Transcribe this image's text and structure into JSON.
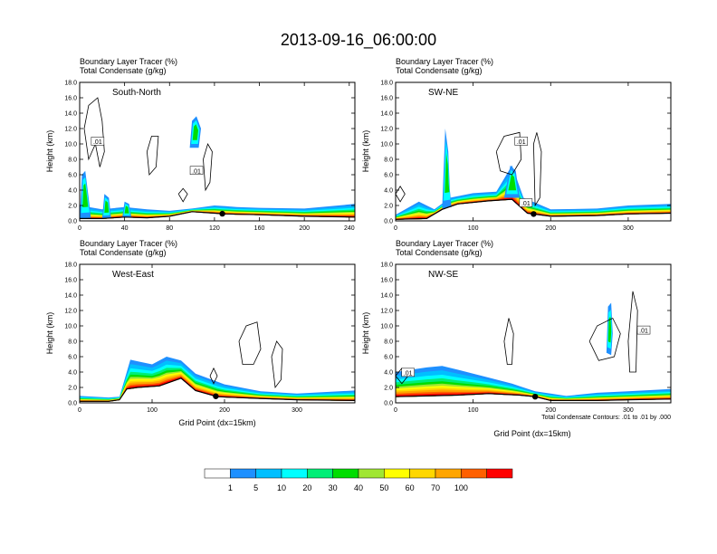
{
  "title": "2013-09-16_06:00:00",
  "header_line1": "Boundary Layer Tracer   (%)",
  "header_line2": "Total Condensate   (g/kg)",
  "ylabel": "Height (km)",
  "xlabel": "Grid Point (dx=15km)",
  "contour_note": "Total Condensate Contours: .01 to .01 by .000",
  "contour_label": ".01",
  "chart_data": {
    "type": "heatmap",
    "colorbar": {
      "colors": [
        "#ffffff",
        "#1e90ff",
        "#00bfff",
        "#00ffff",
        "#00ee76",
        "#00dd00",
        "#a0e632",
        "#ffff00",
        "#ffd700",
        "#ffa500",
        "#ff6000",
        "#ff0000"
      ],
      "labels": [
        "1",
        "5",
        "10",
        "20",
        "30",
        "40",
        "50",
        "60",
        "70",
        "100"
      ]
    },
    "panels": [
      {
        "name": "South-North",
        "xlim": [
          0,
          245
        ],
        "ylim": [
          0,
          18
        ],
        "xticks": [
          0,
          40,
          80,
          120,
          160,
          200,
          240
        ],
        "xtick_labels": [
          "0",
          "40",
          "80",
          "120",
          "160",
          "200",
          "240"
        ],
        "yticks": [
          0,
          2,
          4,
          6,
          8,
          10,
          12,
          14,
          16,
          18
        ],
        "ytick_labels": [
          "0.0",
          "2.0",
          "4.0",
          "6.0",
          "8.0",
          "10.0",
          "12.0",
          "14.0",
          "16.0",
          "18.0"
        ],
        "terrain": [
          [
            0,
            0.3
          ],
          [
            20,
            0.3
          ],
          [
            40,
            0.5
          ],
          [
            60,
            0.4
          ],
          [
            80,
            0.6
          ],
          [
            100,
            1.2
          ],
          [
            120,
            1.0
          ],
          [
            130,
            0.9
          ],
          [
            160,
            0.8
          ],
          [
            200,
            0.6
          ],
          [
            245,
            0.5
          ]
        ],
        "tracer_top": [
          [
            0,
            2.0
          ],
          [
            20,
            1.5
          ],
          [
            40,
            1.8
          ],
          [
            60,
            1.5
          ],
          [
            80,
            1.3
          ],
          [
            100,
            1.6
          ],
          [
            120,
            2.0
          ],
          [
            140,
            1.8
          ],
          [
            160,
            1.7
          ],
          [
            200,
            1.6
          ],
          [
            245,
            2.2
          ]
        ],
        "plumes": [
          [
            [
              0,
              0.3
            ],
            [
              2,
              6.0
            ],
            [
              5,
              6.5
            ],
            [
              8,
              3.0
            ],
            [
              10,
              0.4
            ]
          ],
          [
            [
              20,
              0.3
            ],
            [
              22,
              3.5
            ],
            [
              26,
              3.0
            ],
            [
              28,
              0.4
            ]
          ],
          [
            [
              38,
              0.5
            ],
            [
              40,
              2.5
            ],
            [
              44,
              2.2
            ],
            [
              46,
              0.5
            ]
          ],
          [
            [
              98,
              9.5
            ],
            [
              100,
              13.0
            ],
            [
              104,
              13.6
            ],
            [
              108,
              12.0
            ],
            [
              106,
              9.5
            ]
          ]
        ],
        "marker_x": 127,
        "contours": [
          [
            [
              4,
              12
            ],
            [
              8,
              15
            ],
            [
              16,
              16
            ],
            [
              20,
              13
            ],
            [
              22,
              9
            ],
            [
              18,
              7
            ],
            [
              14,
              10
            ],
            [
              8,
              8
            ],
            [
              4,
              12
            ]
          ],
          [
            [
              60,
              9
            ],
            [
              64,
              11
            ],
            [
              70,
              11
            ],
            [
              68,
              7
            ],
            [
              62,
              6
            ],
            [
              60,
              9
            ]
          ],
          [
            [
              110,
              8
            ],
            [
              114,
              10
            ],
            [
              118,
              9
            ],
            [
              116,
              5
            ],
            [
              112,
              4
            ],
            [
              110,
              8
            ]
          ],
          [
            [
              88,
              3.5
            ],
            [
              92,
              4.2
            ],
            [
              96,
              3.5
            ],
            [
              92,
              2.5
            ],
            [
              88,
              3.5
            ]
          ]
        ],
        "contour_labels": [
          [
            16,
            10.3
          ],
          [
            104,
            6.5
          ]
        ]
      },
      {
        "name": "SW-NE",
        "xlim": [
          0,
          355
        ],
        "ylim": [
          0,
          18
        ],
        "xticks": [
          0,
          100,
          200,
          300
        ],
        "xtick_labels": [
          "0",
          "100",
          "200",
          "300"
        ],
        "yticks": [
          0,
          2,
          4,
          6,
          8,
          10,
          12,
          14,
          16,
          18
        ],
        "ytick_labels": [
          "0.0",
          "2.0",
          "4.0",
          "6.0",
          "8.0",
          "10.0",
          "12.0",
          "14.0",
          "16.0",
          "18.0"
        ],
        "terrain": [
          [
            0,
            0.2
          ],
          [
            40,
            0.3
          ],
          [
            60,
            1.5
          ],
          [
            80,
            2.2
          ],
          [
            120,
            2.6
          ],
          [
            150,
            2.8
          ],
          [
            170,
            1.0
          ],
          [
            200,
            0.6
          ],
          [
            260,
            0.7
          ],
          [
            300,
            0.9
          ],
          [
            355,
            1.0
          ]
        ],
        "tracer_top": [
          [
            0,
            0.8
          ],
          [
            30,
            2.5
          ],
          [
            50,
            1.5
          ],
          [
            70,
            3.0
          ],
          [
            100,
            3.6
          ],
          [
            130,
            3.8
          ],
          [
            150,
            7.2
          ],
          [
            165,
            3.0
          ],
          [
            200,
            1.5
          ],
          [
            260,
            1.6
          ],
          [
            300,
            2.0
          ],
          [
            355,
            2.2
          ]
        ],
        "plumes": [
          [
            [
              60,
              1.6
            ],
            [
              64,
              12.0
            ],
            [
              68,
              9.0
            ],
            [
              70,
              4.0
            ],
            [
              72,
              1.8
            ]
          ],
          [
            [
              140,
              3.0
            ],
            [
              148,
              7.2
            ],
            [
              155,
              6.5
            ],
            [
              160,
              3.0
            ]
          ]
        ],
        "marker_x": 178,
        "contours": [
          [
            [
              130,
              9
            ],
            [
              140,
              11
            ],
            [
              160,
              11.5
            ],
            [
              162,
              8
            ],
            [
              150,
              6
            ],
            [
              135,
              6.5
            ],
            [
              130,
              9
            ]
          ],
          [
            [
              178,
              10
            ],
            [
              182,
              11.5
            ],
            [
              188,
              9
            ],
            [
              186,
              3
            ],
            [
              180,
              2
            ],
            [
              178,
              10
            ]
          ],
          [
            [
              0,
              3.5
            ],
            [
              6,
              4.5
            ],
            [
              12,
              3.5
            ],
            [
              6,
              2.5
            ],
            [
              0,
              3.5
            ]
          ]
        ],
        "contour_labels": [
          [
            162,
            10.3
          ],
          [
            168,
            2.3
          ]
        ]
      },
      {
        "name": "West-East",
        "xlim": [
          0,
          380
        ],
        "ylim": [
          0,
          18
        ],
        "xticks": [
          0,
          100,
          200,
          300
        ],
        "xtick_labels": [
          "0",
          "100",
          "200",
          "300"
        ],
        "yticks": [
          0,
          2,
          4,
          6,
          8,
          10,
          12,
          14,
          16,
          18
        ],
        "ytick_labels": [
          "0.0",
          "2.0",
          "4.0",
          "6.0",
          "8.0",
          "10.0",
          "12.0",
          "14.0",
          "16.0",
          "18.0"
        ],
        "terrain": [
          [
            0,
            0.2
          ],
          [
            40,
            0.2
          ],
          [
            55,
            0.4
          ],
          [
            65,
            1.8
          ],
          [
            80,
            2.0
          ],
          [
            110,
            2.2
          ],
          [
            140,
            3.2
          ],
          [
            160,
            1.6
          ],
          [
            190,
            0.8
          ],
          [
            240,
            0.6
          ],
          [
            300,
            0.4
          ],
          [
            380,
            0.3
          ]
        ],
        "tracer_top": [
          [
            0,
            0.9
          ],
          [
            40,
            0.7
          ],
          [
            55,
            0.8
          ],
          [
            70,
            5.6
          ],
          [
            100,
            5.0
          ],
          [
            120,
            6.0
          ],
          [
            140,
            5.5
          ],
          [
            160,
            3.8
          ],
          [
            200,
            2.4
          ],
          [
            250,
            1.5
          ],
          [
            300,
            1.2
          ],
          [
            380,
            1.6
          ]
        ],
        "plumes": [],
        "marker_x": 188,
        "contours": [
          [
            [
              220,
              8
            ],
            [
              230,
              10
            ],
            [
              245,
              10.5
            ],
            [
              250,
              7
            ],
            [
              240,
              5
            ],
            [
              225,
              5
            ],
            [
              220,
              8
            ]
          ],
          [
            [
              265,
              6
            ],
            [
              272,
              8
            ],
            [
              280,
              7
            ],
            [
              278,
              3
            ],
            [
              270,
              2
            ],
            [
              265,
              6
            ]
          ],
          [
            [
              180,
              3.5
            ],
            [
              185,
              4.5
            ],
            [
              190,
              3.5
            ],
            [
              185,
              2.5
            ],
            [
              180,
              3.5
            ]
          ]
        ],
        "contour_labels": []
      },
      {
        "name": "NW-SE",
        "xlim": [
          0,
          355
        ],
        "ylim": [
          0,
          18
        ],
        "xticks": [
          0,
          100,
          200,
          300
        ],
        "xtick_labels": [
          "0",
          "100",
          "200",
          "300"
        ],
        "yticks": [
          0,
          2,
          4,
          6,
          8,
          10,
          12,
          14,
          16,
          18
        ],
        "ytick_labels": [
          "0.0",
          "2.0",
          "4.0",
          "6.0",
          "8.0",
          "10.0",
          "12.0",
          "14.0",
          "16.0",
          "18.0"
        ],
        "terrain": [
          [
            0,
            0.8
          ],
          [
            40,
            0.9
          ],
          [
            80,
            1.0
          ],
          [
            120,
            1.2
          ],
          [
            160,
            1.0
          ],
          [
            180,
            0.8
          ],
          [
            200,
            0.3
          ],
          [
            260,
            0.3
          ],
          [
            300,
            0.4
          ],
          [
            355,
            0.5
          ]
        ],
        "tracer_top": [
          [
            0,
            4.0
          ],
          [
            40,
            4.6
          ],
          [
            60,
            4.8
          ],
          [
            100,
            3.8
          ],
          [
            150,
            2.5
          ],
          [
            180,
            1.5
          ],
          [
            220,
            0.9
          ],
          [
            260,
            1.3
          ],
          [
            300,
            1.5
          ],
          [
            355,
            1.8
          ]
        ],
        "plumes": [
          [
            [
              272,
              6.5
            ],
            [
              274,
              12.5
            ],
            [
              278,
              13.0
            ],
            [
              280,
              9.0
            ],
            [
              278,
              6.2
            ]
          ]
        ],
        "marker_x": 180,
        "contours": [
          [
            [
              250,
              8
            ],
            [
              260,
              10
            ],
            [
              280,
              11
            ],
            [
              290,
              9
            ],
            [
              282,
              6
            ],
            [
              262,
              5.5
            ],
            [
              250,
              8
            ]
          ],
          [
            [
              140,
              8
            ],
            [
              146,
              11
            ],
            [
              152,
              9
            ],
            [
              150,
              5
            ],
            [
              144,
              5
            ],
            [
              140,
              8
            ]
          ],
          [
            [
              300,
              8
            ],
            [
              306,
              14.5
            ],
            [
              312,
              12
            ],
            [
              310,
              4
            ],
            [
              302,
              4
            ],
            [
              300,
              8
            ]
          ],
          [
            [
              0,
              3.5
            ],
            [
              8,
              4.5
            ],
            [
              16,
              3.5
            ],
            [
              8,
              2.5
            ],
            [
              0,
              3.5
            ]
          ]
        ],
        "contour_labels": [
          [
            320,
            9.4
          ],
          [
            16,
            3.9
          ]
        ]
      }
    ]
  }
}
